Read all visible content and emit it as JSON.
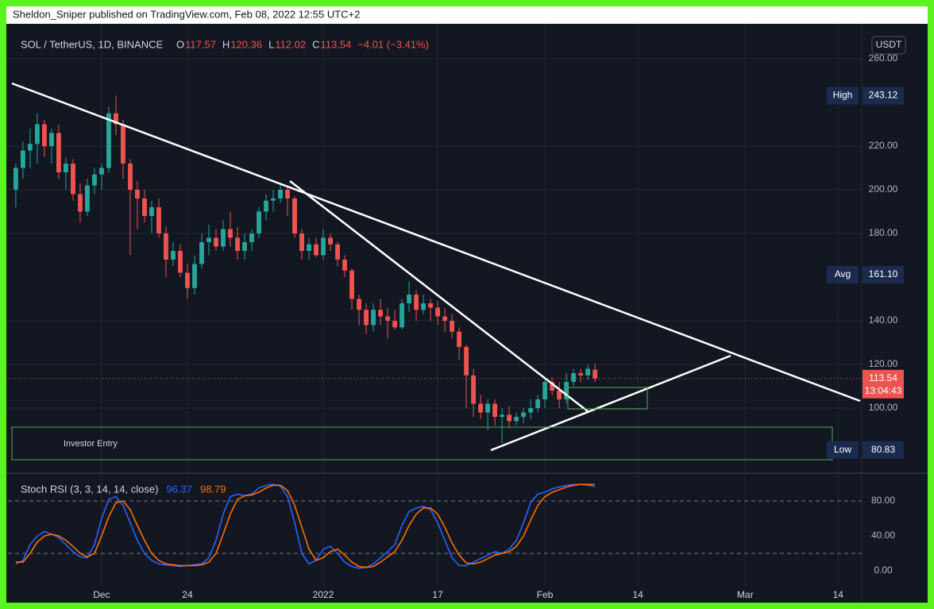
{
  "header": "Sheldon_Sniper published on TradingView.com, Feb 08, 2022 12:55 UTC+2",
  "chart_data": {
    "type": "candlestick",
    "title": "SOL / TetherUS, 1D, BINANCE",
    "legend_items": [
      {
        "key": "O",
        "value": 117.57
      },
      {
        "key": "H",
        "value": 120.36
      },
      {
        "key": "L",
        "value": 112.02
      },
      {
        "key": "C",
        "value": 113.54
      }
    ],
    "change": "−4.01 (−3.41%)",
    "currency": "USDT",
    "up_color": "#26a69a",
    "down_color": "#ef5350",
    "open": [
      200,
      210,
      218,
      221,
      230,
      220,
      226,
      208,
      212,
      198,
      190,
      202,
      207,
      210,
      235,
      230,
      212,
      200,
      196,
      188,
      192,
      180,
      168,
      172,
      162,
      155,
      166,
      176,
      178,
      174,
      182,
      178,
      172,
      176,
      180,
      190,
      195,
      196,
      200,
      196,
      180,
      172,
      175,
      170,
      178,
      175,
      168,
      163,
      150,
      145,
      138,
      145,
      142,
      140,
      137,
      148,
      152,
      145,
      148,
      146,
      142,
      140,
      135,
      128,
      115,
      102,
      98,
      102,
      96,
      97,
      94,
      96,
      98,
      100,
      104,
      112,
      108,
      104,
      112,
      116,
      115,
      117.57
    ],
    "high": [
      212,
      222,
      228,
      235,
      232,
      228,
      230,
      215,
      214,
      203,
      205,
      210,
      212,
      238,
      243,
      232,
      214,
      204,
      200,
      195,
      196,
      183,
      176,
      175,
      166,
      170,
      180,
      184,
      182,
      186,
      190,
      183,
      180,
      182,
      192,
      198,
      200,
      203,
      202,
      197,
      182,
      178,
      178,
      182,
      180,
      176,
      170,
      164,
      152,
      148,
      148,
      150,
      146,
      145,
      150,
      158,
      154,
      152,
      150,
      149,
      146,
      143,
      137,
      129,
      118,
      106,
      104,
      104,
      100,
      101,
      98,
      100,
      104,
      106,
      114,
      114,
      112,
      116,
      118,
      118,
      120,
      120.36
    ],
    "low": [
      192,
      205,
      210,
      212,
      215,
      212,
      205,
      200,
      195,
      185,
      188,
      198,
      200,
      208,
      225,
      205,
      170,
      182,
      185,
      180,
      178,
      160,
      165,
      160,
      150,
      152,
      164,
      170,
      172,
      172,
      174,
      168,
      168,
      172,
      178,
      186,
      190,
      194,
      188,
      178,
      168,
      168,
      169,
      168,
      172,
      165,
      160,
      145,
      138,
      134,
      135,
      138,
      132,
      136,
      136,
      144,
      140,
      143,
      140,
      138,
      135,
      132,
      122,
      100,
      96,
      95,
      90,
      92,
      84,
      91,
      92,
      93,
      95,
      98,
      100,
      106,
      100,
      102,
      110,
      112,
      113,
      112.02
    ],
    "close": [
      210,
      218,
      221,
      230,
      220,
      226,
      208,
      212,
      198,
      190,
      202,
      207,
      210,
      235,
      230,
      212,
      200,
      196,
      188,
      192,
      180,
      168,
      172,
      162,
      155,
      166,
      176,
      178,
      174,
      182,
      178,
      172,
      176,
      180,
      190,
      195,
      196,
      200,
      196,
      180,
      172,
      175,
      170,
      178,
      175,
      168,
      163,
      150,
      145,
      138,
      145,
      142,
      140,
      137,
      148,
      152,
      145,
      148,
      146,
      142,
      140,
      135,
      128,
      115,
      102,
      98,
      102,
      96,
      97,
      94,
      96,
      98,
      100,
      104,
      112,
      108,
      104,
      112,
      116,
      115,
      118,
      113.54
    ],
    "xlim": [
      -1.1,
      118.3
    ],
    "xticks": [
      {
        "value": 12,
        "label": "Dec"
      },
      24,
      {
        "value": 43,
        "label": "2022"
      },
      {
        "value": 59,
        "label": "17"
      },
      {
        "value": 74,
        "label": "Feb"
      },
      {
        "value": 87,
        "label": "14"
      },
      {
        "value": 102,
        "label": "Mar"
      },
      {
        "value": 115,
        "label": "14"
      }
    ],
    "ylim": [
      72.36,
      272.36
    ],
    "yticks": [
      {
        "value": 260,
        "label": "260.00"
      },
      {
        "value": 220,
        "label": "220.00"
      },
      {
        "value": 200,
        "label": "200.00"
      },
      {
        "value": 180,
        "label": "180.00"
      },
      {
        "value": 140,
        "label": "140.00"
      },
      {
        "value": 120,
        "label": "120.00"
      },
      {
        "value": 100,
        "label": "100.00"
      }
    ],
    "grid": true,
    "markers": [
      {
        "label": "High",
        "value": 243.12,
        "value_label": "243.12"
      },
      {
        "label": "Avg",
        "value": 161.1,
        "value_label": "161.10"
      },
      {
        "label": "Low",
        "value": 80.83,
        "value_label": "80.83"
      }
    ],
    "last_price": 113.54,
    "countdown": "13:04:43",
    "annotation": "Investor Entry",
    "indicator": {
      "title": "Stoch RSI (3, 3, 14, 14, close)",
      "ylim": [
        -17.3,
        108.2
      ],
      "yticks": [
        {
          "value": 80,
          "label": "80.00"
        },
        {
          "value": 40,
          "label": "40.00"
        },
        {
          "value": 0,
          "label": "0.00"
        }
      ],
      "bands": [
        80,
        20
      ],
      "series": [
        {
          "name": "K",
          "color": "#2962ff",
          "values": [
            8,
            12,
            30,
            40,
            45,
            42,
            38,
            30,
            22,
            16,
            15,
            30,
            60,
            82,
            85,
            75,
            55,
            35,
            20,
            12,
            8,
            7,
            6,
            5,
            6,
            7,
            8,
            15,
            35,
            65,
            85,
            88,
            86,
            88,
            95,
            98,
            99,
            97,
            85,
            55,
            20,
            8,
            12,
            25,
            28,
            20,
            10,
            5,
            3,
            4,
            8,
            15,
            22,
            30,
            52,
            68,
            72,
            74,
            70,
            55,
            35,
            15,
            6,
            6,
            10,
            14,
            18,
            22,
            20,
            25,
            35,
            55,
            78,
            88,
            90,
            94,
            96,
            98,
            99,
            99,
            98,
            96.37
          ]
        },
        {
          "name": "D",
          "color": "#ff6d00",
          "values": [
            10,
            10,
            20,
            33,
            40,
            42,
            40,
            35,
            28,
            20,
            16,
            20,
            40,
            62,
            78,
            80,
            70,
            52,
            35,
            20,
            12,
            8,
            7,
            6,
            6,
            6,
            7,
            10,
            20,
            42,
            65,
            82,
            86,
            87,
            90,
            95,
            98,
            98,
            92,
            75,
            50,
            25,
            12,
            15,
            22,
            25,
            18,
            10,
            5,
            4,
            5,
            10,
            16,
            22,
            35,
            52,
            65,
            72,
            72,
            65,
            50,
            32,
            18,
            9,
            8,
            10,
            14,
            18,
            20,
            22,
            28,
            40,
            58,
            75,
            85,
            90,
            93,
            96,
            98,
            99,
            99,
            98.79
          ]
        }
      ]
    }
  }
}
